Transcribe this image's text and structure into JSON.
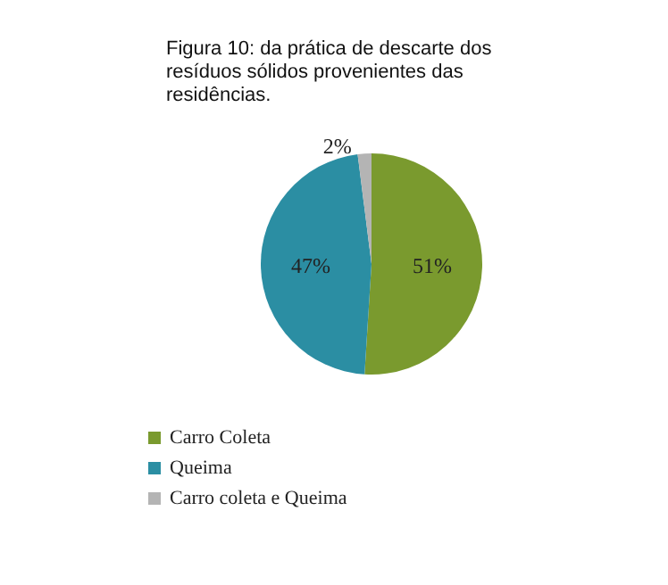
{
  "chart_data": {
    "type": "pie",
    "title": "Figura 10: da prática de descarte dos resíduos sólidos provenientes das residências.",
    "categories": [
      "Carro Coleta",
      "Queima",
      "Carro coleta e Queima"
    ],
    "values": [
      51,
      47,
      2
    ],
    "colors": [
      "#7a9a2e",
      "#2b8ea3",
      "#b4b4b4"
    ],
    "value_labels": [
      "51%",
      "47%",
      "2%"
    ],
    "legend": "bottom left"
  }
}
